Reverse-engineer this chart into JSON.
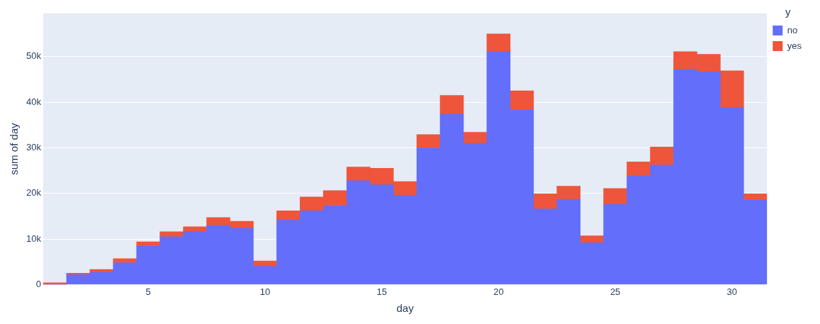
{
  "chart_data": {
    "type": "bar",
    "xlabel": "day",
    "ylabel": "sum of day",
    "legend_title": "y",
    "stacked": true,
    "x": [
      1,
      2,
      3,
      4,
      5,
      6,
      7,
      8,
      9,
      10,
      11,
      12,
      13,
      14,
      15,
      16,
      17,
      18,
      19,
      20,
      21,
      22,
      23,
      24,
      25,
      26,
      27,
      28,
      29,
      30,
      31
    ],
    "series": [
      {
        "name": "no",
        "color": "#636efa",
        "values": [
          0,
          2200,
          2700,
          4800,
          8400,
          10500,
          11600,
          13000,
          12400,
          4000,
          14200,
          16200,
          17400,
          22800,
          21900,
          19600,
          30000,
          37400,
          31000,
          51100,
          38400,
          16600,
          18700,
          9200,
          17600,
          23900,
          26200,
          47200,
          46700,
          38800,
          18500
        ]
      },
      {
        "name": "yes",
        "color": "#ef553b",
        "values": [
          400,
          300,
          600,
          900,
          1000,
          1100,
          1100,
          1700,
          1500,
          1200,
          2000,
          3000,
          3200,
          3000,
          3600,
          3000,
          2900,
          4100,
          2400,
          3900,
          4100,
          3300,
          2900,
          1500,
          3500,
          3000,
          4000,
          3900,
          3800,
          8100,
          1400
        ]
      }
    ],
    "xlim": [
      0.5,
      31.5
    ],
    "xticks": [
      5,
      10,
      15,
      20,
      25,
      30
    ],
    "ylim": [
      0,
      59500
    ],
    "yticks": [
      0,
      {
        "value": 10000,
        "label": "10k"
      },
      {
        "value": 20000,
        "label": "20k"
      },
      {
        "value": 30000,
        "label": "30k"
      },
      {
        "value": 40000,
        "label": "40k"
      },
      {
        "value": 50000,
        "label": "50k"
      }
    ],
    "grid": "y",
    "legend": "top right"
  }
}
